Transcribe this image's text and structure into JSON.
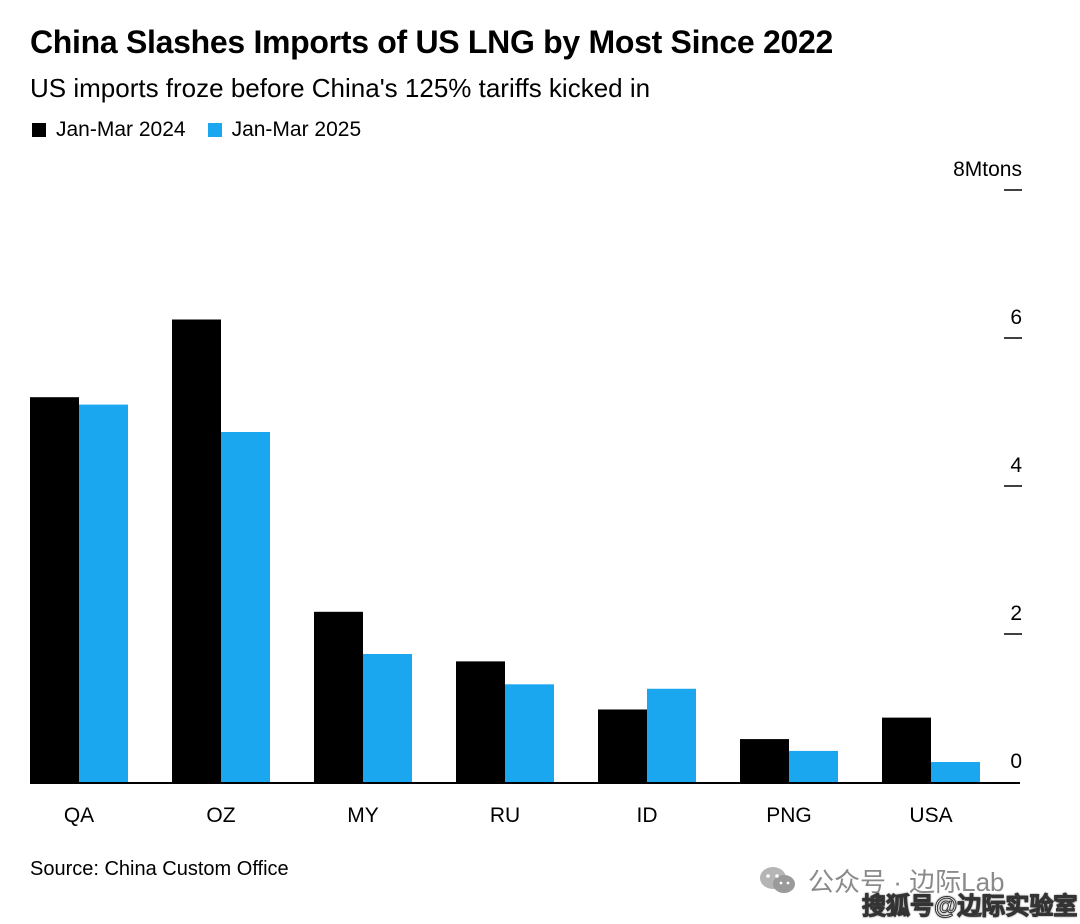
{
  "header": {
    "title": "China Slashes Imports of US LNG by Most Since 2022",
    "subtitle": "US imports froze before China's 125% tariffs kicked in"
  },
  "legend": [
    {
      "label": "Jan-Mar 2024",
      "color": "#000000"
    },
    {
      "label": "Jan-Mar 2025",
      "color": "#1aa7f0"
    }
  ],
  "chart_data": {
    "type": "bar",
    "categories": [
      "QA",
      "OZ",
      "MY",
      "RU",
      "ID",
      "PNG",
      "USA"
    ],
    "series": [
      {
        "name": "Jan-Mar 2024",
        "color": "#000000",
        "values": [
          5.2,
          6.25,
          2.3,
          1.63,
          0.98,
          0.58,
          0.87
        ]
      },
      {
        "name": "Jan-Mar 2025",
        "color": "#1aa7f0",
        "values": [
          5.1,
          4.73,
          1.73,
          1.32,
          1.26,
          0.42,
          0.27
        ]
      }
    ],
    "ylim": [
      0,
      8
    ],
    "yticks": [
      0,
      2,
      4,
      6,
      8
    ],
    "ytick_labels": [
      "0",
      "2",
      "4",
      "6",
      "8Mtons"
    ],
    "axis_position": "right",
    "grid": false
  },
  "footer": {
    "source": "Source: China Custom Office"
  },
  "watermark": {
    "line1": "公众号 · 边际Lab",
    "line2": "搜狐号@边际实验室",
    "logo_icon": "wechat-icon"
  }
}
